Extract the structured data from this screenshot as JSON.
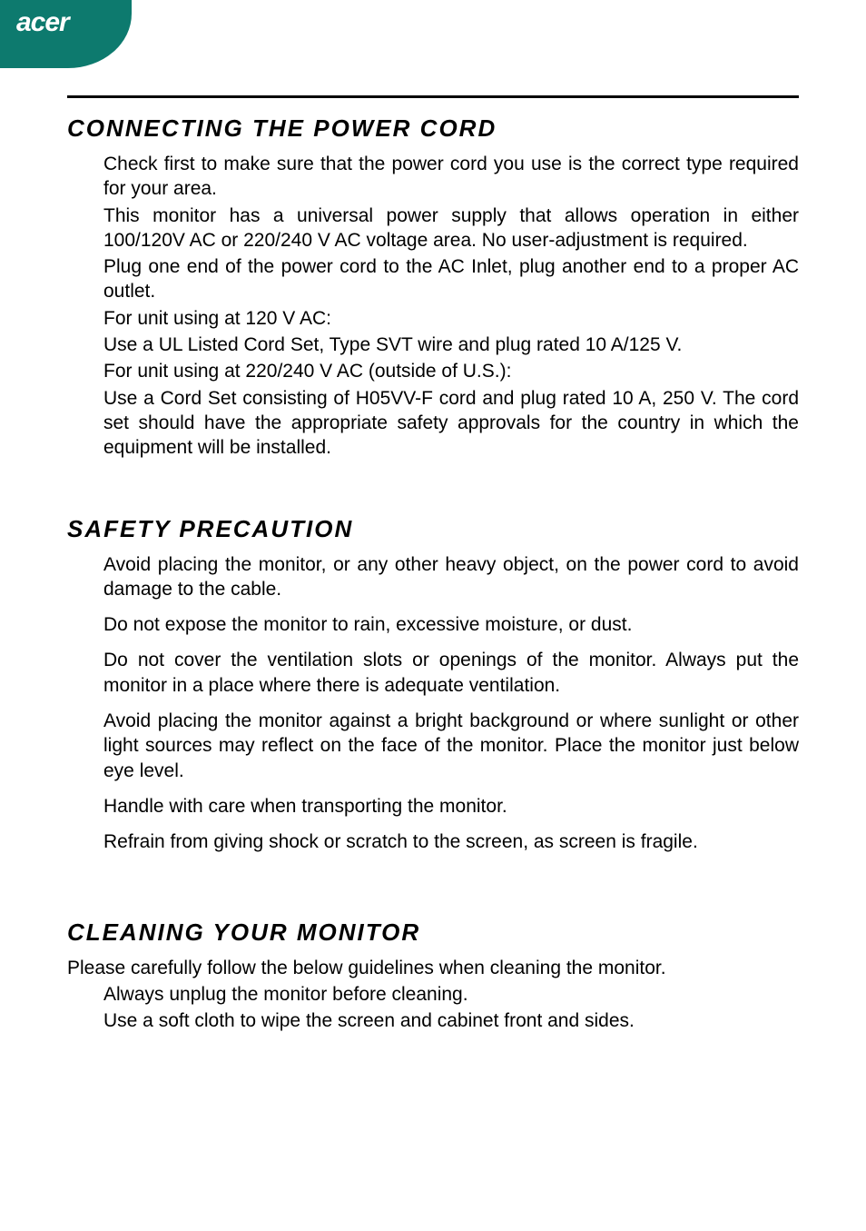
{
  "brand": {
    "logo_text": "acer",
    "logo_bg_color": "#0d7a6e",
    "logo_text_color": "#ffffff"
  },
  "sections": {
    "connecting": {
      "heading": "CONNECTING THE POWER CORD",
      "p1": "Check first to make sure that the power cord you use is the correct type required for your area.",
      "p2": "This monitor has a universal power supply that allows operation in either 100/120V AC or 220/240 V AC voltage area. No user-adjustment is required.",
      "p3": "Plug one end of the power cord to the AC Inlet, plug another end to a proper AC outlet.",
      "p4": "For unit using at 120 V AC:",
      "p5": "Use a UL Listed Cord Set, Type SVT wire and plug rated 10 A/125 V.",
      "p6": "For unit using at 220/240 V AC (outside of U.S.):",
      "p7": "Use a Cord Set consisting of H05VV-F cord and plug rated 10 A, 250 V. The cord set should have the appropriate safety approvals for the country in which the equipment will be installed."
    },
    "safety": {
      "heading": "SAFETY PRECAUTION",
      "items": {
        "i1": "Avoid placing the monitor, or any other heavy object, on the power cord to avoid damage to the cable.",
        "i2": "Do not expose the monitor to rain, excessive moisture, or dust.",
        "i3": "Do not cover the ventilation slots or openings of the monitor. Always put the monitor in a place where there is adequate ventilation.",
        "i4": "Avoid placing the monitor against a bright background or where sunlight or other light sources may reflect on the face of the monitor. Place the monitor just below eye level.",
        "i5": "Handle with care when transporting the monitor.",
        "i6": "Refrain from giving shock or scratch to the screen, as screen is fragile."
      }
    },
    "cleaning": {
      "heading": "CLEANING YOUR MONITOR",
      "intro": "Please carefully follow the below guidelines when cleaning the monitor.",
      "items": {
        "i1": "Always unplug the monitor before cleaning.",
        "i2": "Use a soft cloth to wipe the screen and cabinet front and sides."
      }
    }
  },
  "styling": {
    "background_color": "#ffffff",
    "text_color": "#000000",
    "heading_fontsize": 26,
    "body_fontsize": 21,
    "divider_color": "#000000"
  }
}
